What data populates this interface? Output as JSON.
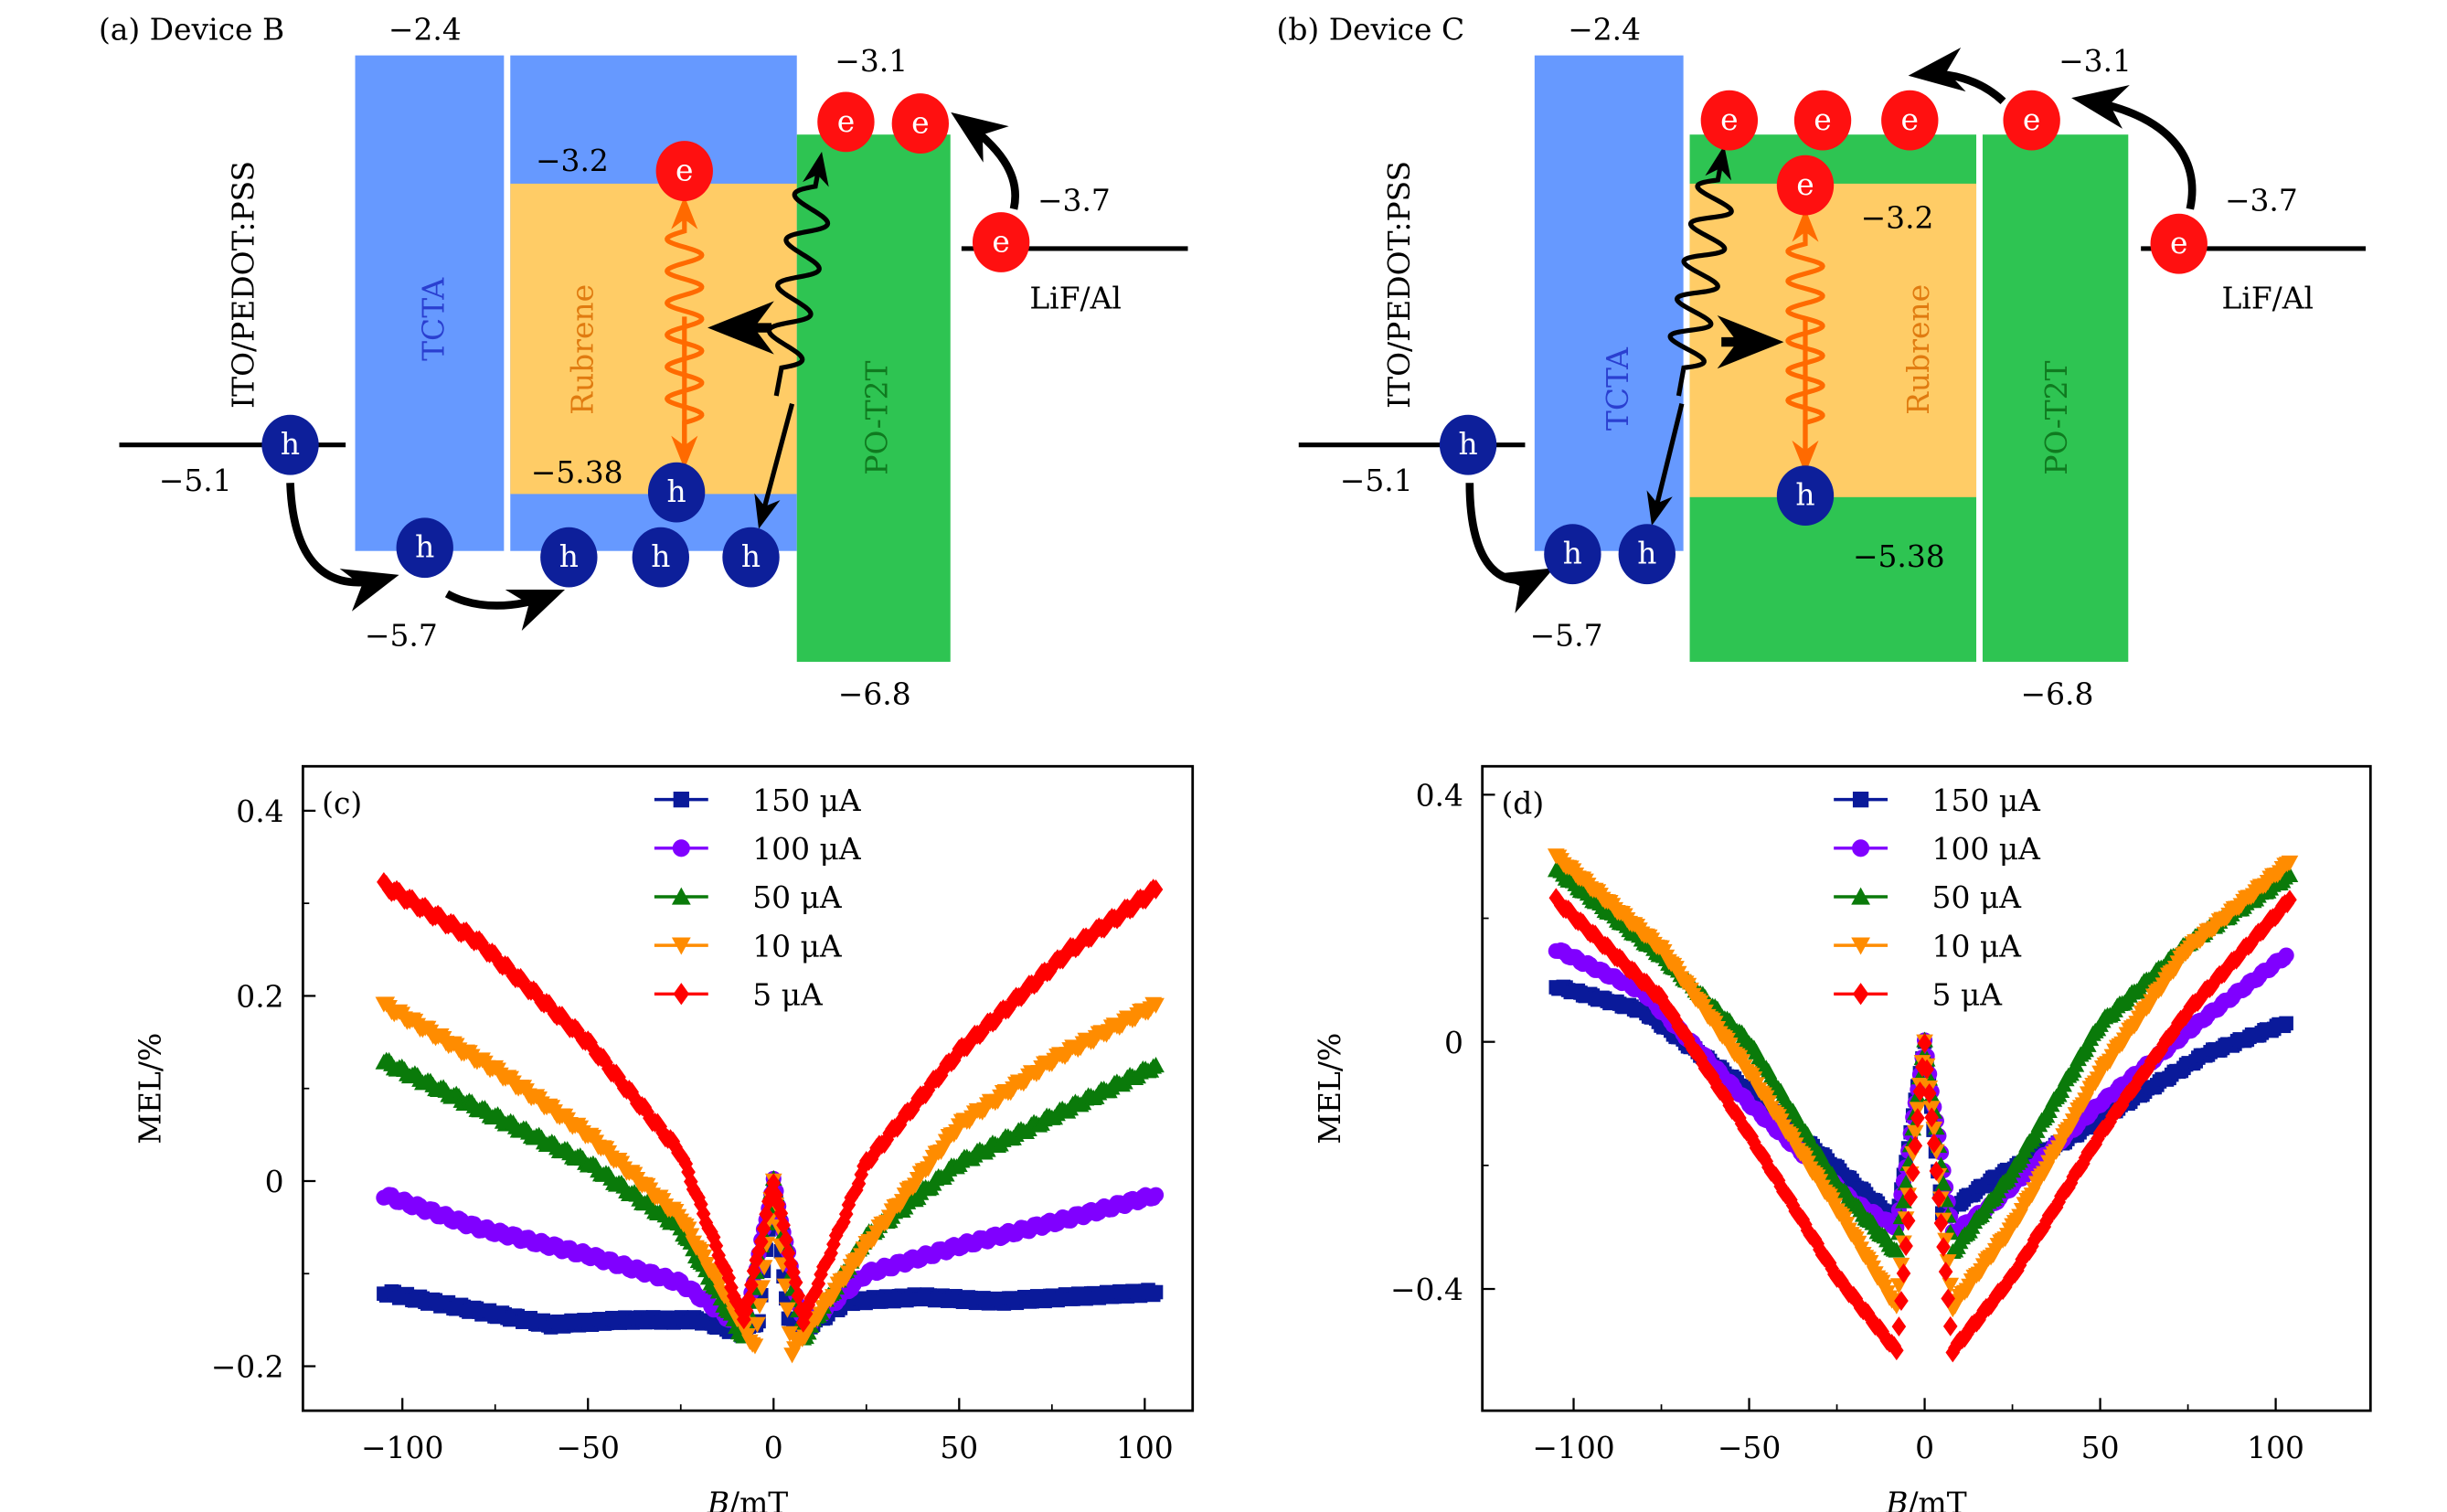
{
  "diagrams": [
    {
      "panel_label": "(a) Device B",
      "anode": "ITO/PEDOT:PSS",
      "cathode": "LiF/Al",
      "layers": [
        "TCTA",
        "Rubrene",
        "PO-T2T"
      ],
      "levels": {
        "anode": "−5.1",
        "tcta_lumo": "−2.4",
        "tcta_homo": "−5.7",
        "rub_lumo": "−3.2",
        "rub_homo": "−5.38",
        "pot_lumo": "−3.1",
        "pot_homo": "−6.8",
        "cathode": "−3.7"
      },
      "electron_symbol": "e",
      "hole_symbol": "h"
    },
    {
      "panel_label": "(b) Device C",
      "anode": "ITO/PEDOT:PSS",
      "cathode": "LiF/Al",
      "layers": [
        "TCTA",
        "Rubrene",
        "PO-T2T"
      ],
      "levels": {
        "anode": "−5.1",
        "tcta_lumo": "−2.4",
        "tcta_homo": "−5.7",
        "rub_lumo": "−3.2",
        "rub_homo": "−5.38",
        "pot_lumo": "−3.1",
        "pot_homo": "−6.8",
        "cathode": "−3.7"
      },
      "electron_symbol": "e",
      "hole_symbol": "h"
    }
  ],
  "colors": {
    "tcta": "#6699ff",
    "rubrene": "#ffcc66",
    "pot2t": "#2ec452",
    "electron": "#ff1010",
    "hole": "#0d1f9a",
    "exciton": "#ff6a00"
  },
  "chart_data": [
    {
      "type": "scatter",
      "panel_label": "(c)",
      "xlabel_italic": "B",
      "xlabel_unit": "/mT",
      "ylabel": "MEL/%",
      "xlim": [
        -126.8,
        112.9
      ],
      "ylim": [
        -0.248,
        0.448
      ],
      "xticks": [
        -100,
        -50,
        0,
        50,
        100
      ],
      "xtick_labels": [
        "−100",
        "−50",
        "0",
        "50",
        "100"
      ],
      "yticks": [
        -0.2,
        0,
        0.2,
        0.4
      ],
      "ytick_labels": [
        "−0.2",
        "0",
        "0.2",
        "0.4"
      ],
      "legend": "top-center",
      "grid": false,
      "series": [
        {
          "name": "150 μA",
          "color": "#0a1a9a",
          "marker": "square",
          "x": [
            -105,
            -80,
            -60,
            -40,
            -20,
            -8,
            -4,
            0,
            4,
            8,
            20,
            40,
            60,
            80,
            103
          ],
          "y": [
            -0.12,
            -0.14,
            -0.155,
            -0.15,
            -0.15,
            -0.165,
            -0.15,
            0,
            -0.15,
            -0.16,
            -0.13,
            -0.125,
            -0.13,
            -0.125,
            -0.12
          ]
        },
        {
          "name": "100 μA",
          "color": "#8000ff",
          "marker": "circle",
          "x": [
            -105,
            -80,
            -50,
            -25,
            -8,
            0,
            8,
            25,
            50,
            80,
            103
          ],
          "y": [
            -0.015,
            -0.05,
            -0.08,
            -0.11,
            -0.16,
            0,
            -0.16,
            -0.1,
            -0.07,
            -0.04,
            -0.015
          ]
        },
        {
          "name": "50 μA",
          "color": "#0a7a0a",
          "marker": "triangle-up",
          "x": [
            -105,
            -75,
            -50,
            -25,
            -8,
            0,
            8,
            25,
            50,
            75,
            103
          ],
          "y": [
            0.13,
            0.07,
            0.02,
            -0.05,
            -0.17,
            0,
            -0.17,
            -0.06,
            0.02,
            0.07,
            0.125
          ]
        },
        {
          "name": "10 μA",
          "color": "#ff8c00",
          "marker": "triangle-down",
          "x": [
            -105,
            -75,
            -50,
            -25,
            -5,
            0,
            5,
            25,
            50,
            75,
            103
          ],
          "y": [
            0.19,
            0.12,
            0.05,
            -0.04,
            -0.18,
            0,
            -0.185,
            -0.07,
            0.06,
            0.13,
            0.19
          ]
        },
        {
          "name": "5 μA",
          "color": "#ff0000",
          "marker": "diamond",
          "x": [
            -105,
            -80,
            -50,
            -25,
            -8,
            0,
            8,
            25,
            50,
            80,
            103
          ],
          "y": [
            0.32,
            0.26,
            0.15,
            0.03,
            -0.15,
            0,
            -0.15,
            0.02,
            0.14,
            0.25,
            0.315
          ]
        }
      ]
    },
    {
      "type": "scatter",
      "panel_label": "(d)",
      "xlabel_italic": "B",
      "xlabel_unit": "/mT",
      "ylabel": "MEL/%",
      "xlim": [
        -126,
        127
      ],
      "ylim": [
        -0.597,
        0.446
      ],
      "xticks": [
        -100,
        -50,
        0,
        50,
        100
      ],
      "xtick_labels": [
        "−100",
        "−50",
        "0",
        "50",
        "100"
      ],
      "yticks": [
        -0.4,
        0,
        0.4
      ],
      "ytick_labels": [
        "−0.4",
        "0",
        "0.4"
      ],
      "legend": "top-center",
      "grid": false,
      "series": [
        {
          "name": "150 μA",
          "color": "#0a1a9a",
          "marker": "square",
          "x": [
            -105,
            -80,
            -50,
            -20,
            -8,
            0,
            5,
            20,
            40,
            60,
            80,
            103
          ],
          "y": [
            0.09,
            0.05,
            -0.08,
            -0.23,
            -0.29,
            0,
            -0.28,
            -0.22,
            -0.16,
            -0.09,
            -0.02,
            0.03
          ]
        },
        {
          "name": "100 μA",
          "color": "#8000ff",
          "marker": "circle",
          "x": [
            -105,
            -80,
            -50,
            -20,
            -8,
            0,
            8,
            20,
            50,
            80,
            103
          ],
          "y": [
            0.15,
            0.08,
            -0.1,
            -0.26,
            -0.3,
            0,
            -0.31,
            -0.26,
            -0.1,
            0.04,
            0.14
          ]
        },
        {
          "name": "50 μA",
          "color": "#0a7a0a",
          "marker": "triangle-up",
          "x": [
            -105,
            -75,
            -50,
            -25,
            -8,
            0,
            8,
            25,
            50,
            75,
            104
          ],
          "y": [
            0.28,
            0.14,
            0.0,
            -0.23,
            -0.34,
            0,
            -0.34,
            -0.21,
            0.03,
            0.16,
            0.27
          ]
        },
        {
          "name": "10 μA",
          "color": "#ff8c00",
          "marker": "triangle-down",
          "x": [
            -105,
            -75,
            -50,
            -25,
            -8,
            0,
            8,
            25,
            50,
            75,
            104
          ],
          "y": [
            0.3,
            0.15,
            -0.05,
            -0.27,
            -0.43,
            0,
            -0.43,
            -0.3,
            -0.05,
            0.15,
            0.29
          ]
        },
        {
          "name": "5 μA",
          "color": "#ff0000",
          "marker": "diamond",
          "x": [
            -105,
            -75,
            -50,
            -25,
            -8,
            0,
            8,
            25,
            50,
            75,
            104
          ],
          "y": [
            0.23,
            0.07,
            -0.15,
            -0.38,
            -0.5,
            0,
            -0.5,
            -0.38,
            -0.15,
            0.05,
            0.23
          ]
        }
      ]
    }
  ]
}
